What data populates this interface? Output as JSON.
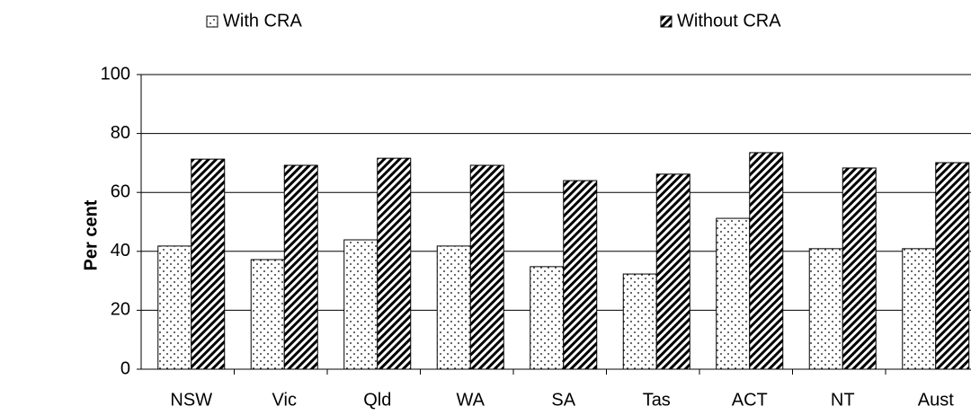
{
  "chart_data": {
    "type": "bar",
    "y_label": "Per cent",
    "categories": [
      "NSW",
      "Vic",
      "Qld",
      "WA",
      "SA",
      "Tas",
      "ACT",
      "NT",
      "Aust"
    ],
    "series": [
      {
        "name": "With CRA",
        "color": "#000000",
        "pattern": "dots",
        "values": [
          41.8,
          37.2,
          43.9,
          41.8,
          34.8,
          32.3,
          51.2,
          40.9,
          40.9
        ]
      },
      {
        "name": "Without CRA",
        "color": "#000000",
        "pattern": "hatch",
        "values": [
          71.3,
          69.2,
          71.6,
          69.2,
          64.0,
          66.2,
          73.5,
          68.3,
          70.1
        ]
      }
    ],
    "ylim": [
      0,
      100
    ],
    "yticks": [
      0,
      20,
      40,
      60,
      80,
      100
    ],
    "grid": true,
    "legend": "top"
  }
}
